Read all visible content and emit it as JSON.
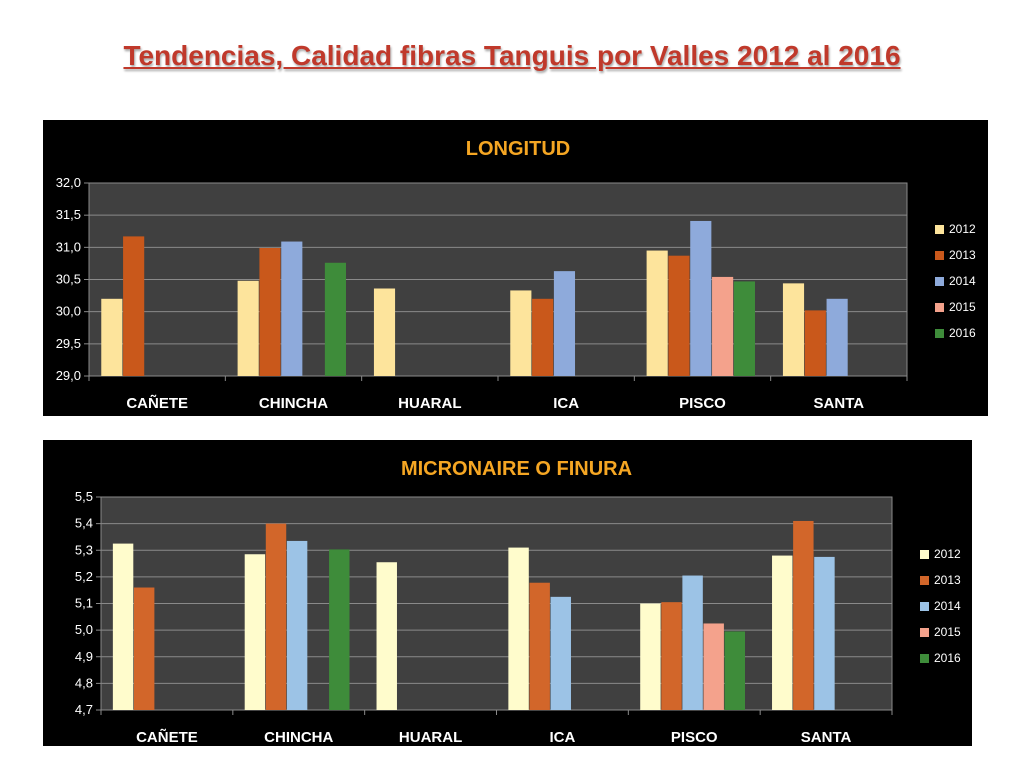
{
  "page_title": "Tendencias, Calidad fibras Tanguis por Valles 2012 al 2016",
  "colors": {
    "title_text": "#c0392b",
    "chart_title": "#f5a623",
    "panel_bg": "#000000",
    "plot_bg": "#404040"
  },
  "chart_data": [
    {
      "type": "bar",
      "title": "LONGITUD",
      "xlabel": "",
      "ylabel": "",
      "categories": [
        "CAÑETE",
        "CHINCHA",
        "HUARAL",
        "ICA",
        "PISCO",
        "SANTA"
      ],
      "ylim": [
        29.0,
        32.0
      ],
      "yticks": [
        29.0,
        29.5,
        30.0,
        30.5,
        31.0,
        31.5,
        32.0
      ],
      "ytick_labels": [
        "29,0",
        "29,5",
        "30,0",
        "30,5",
        "31,0",
        "31,5",
        "32,0"
      ],
      "grid": true,
      "legend_position": "right",
      "series": [
        {
          "name": "2012",
          "color": "#fde49c",
          "values": [
            30.2,
            30.48,
            30.36,
            30.33,
            30.95,
            30.44
          ]
        },
        {
          "name": "2013",
          "color": "#c9581b",
          "values": [
            31.17,
            30.99,
            null,
            30.2,
            30.87,
            30.02
          ]
        },
        {
          "name": "2014",
          "color": "#8eaadb",
          "values": [
            null,
            31.09,
            null,
            30.63,
            31.41,
            30.2
          ]
        },
        {
          "name": "2015",
          "color": "#f4a28c",
          "values": [
            null,
            null,
            null,
            null,
            30.54,
            null
          ]
        },
        {
          "name": "2016",
          "color": "#3e8c3a",
          "values": [
            null,
            30.76,
            null,
            null,
            30.47,
            null
          ]
        }
      ]
    },
    {
      "type": "bar",
      "title": "MICRONAIRE O FINURA",
      "xlabel": "",
      "ylabel": "",
      "categories": [
        "CAÑETE",
        "CHINCHA",
        "HUARAL",
        "ICA",
        "PISCO",
        "SANTA"
      ],
      "ylim": [
        4.7,
        5.5
      ],
      "yticks": [
        4.7,
        4.8,
        4.9,
        5.0,
        5.1,
        5.2,
        5.3,
        5.4,
        5.5
      ],
      "ytick_labels": [
        "4,7",
        "4,8",
        "4,9",
        "5,0",
        "5,1",
        "5,2",
        "5,3",
        "5,4",
        "5,5"
      ],
      "grid": true,
      "legend_position": "right",
      "series": [
        {
          "name": "2012",
          "color": "#fffccc",
          "values": [
            5.325,
            5.285,
            5.255,
            5.31,
            5.1,
            5.28
          ]
        },
        {
          "name": "2013",
          "color": "#d2662a",
          "values": [
            5.16,
            5.4,
            null,
            5.178,
            5.105,
            5.41
          ]
        },
        {
          "name": "2014",
          "color": "#9cc3e6",
          "values": [
            null,
            5.335,
            null,
            5.125,
            5.205,
            5.275
          ]
        },
        {
          "name": "2015",
          "color": "#f4a28c",
          "values": [
            null,
            null,
            null,
            null,
            5.025,
            null
          ]
        },
        {
          "name": "2016",
          "color": "#3e8c3a",
          "values": [
            null,
            5.303,
            null,
            null,
            4.995,
            null
          ]
        }
      ]
    }
  ]
}
